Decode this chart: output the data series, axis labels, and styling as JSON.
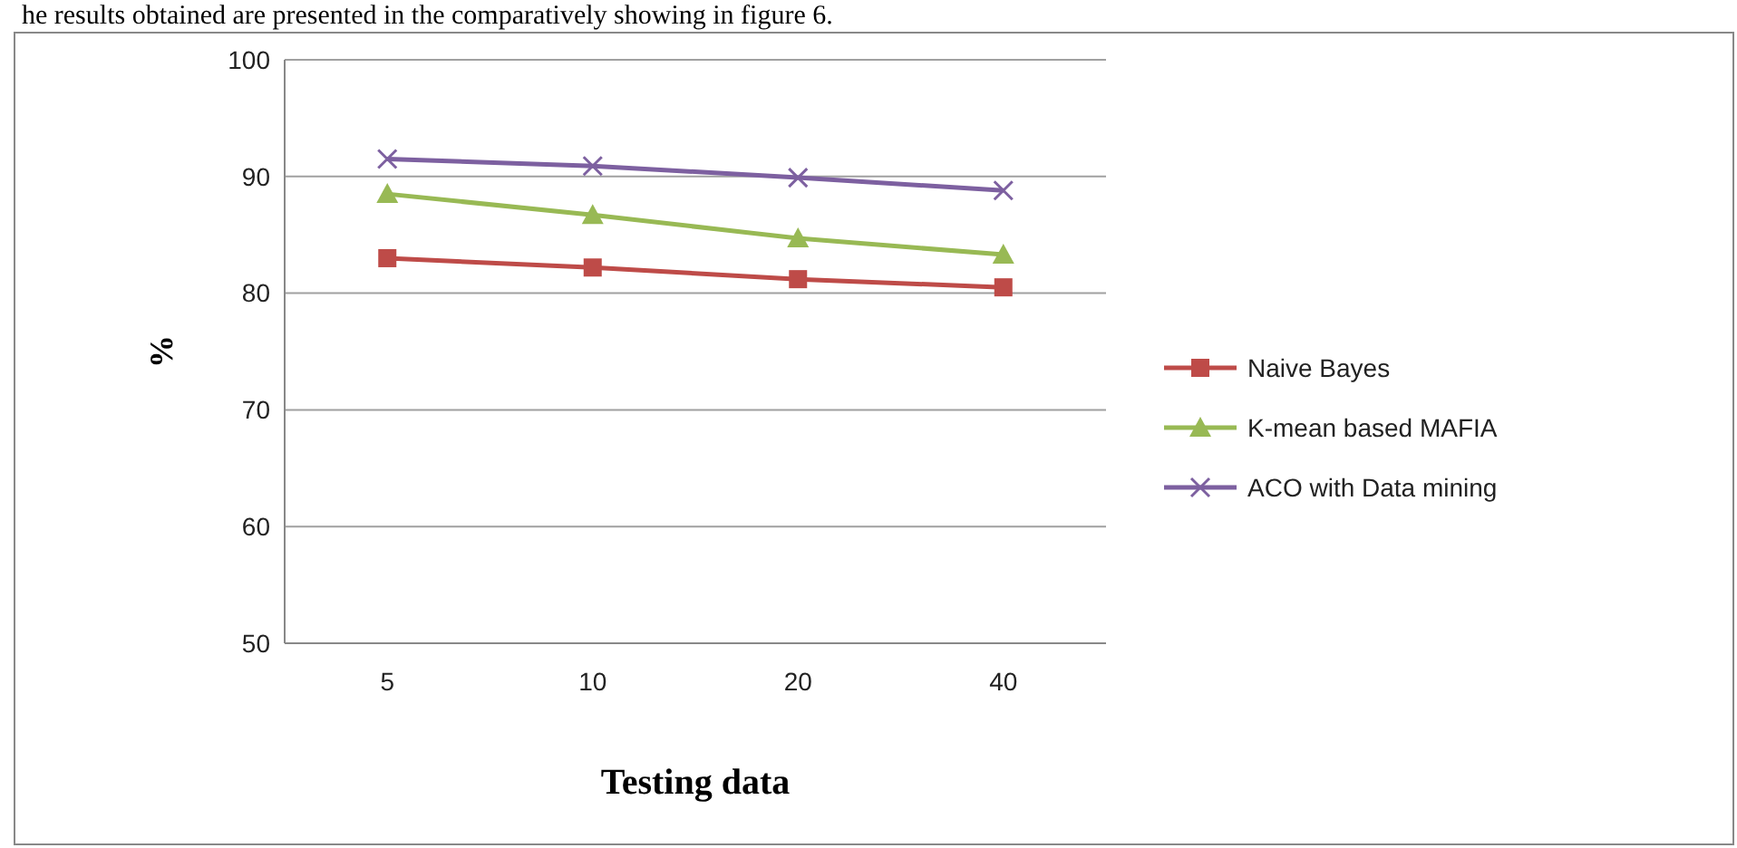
{
  "chart_data": {
    "type": "line",
    "xlabel": "Testing data",
    "ylabel": "%",
    "categories": [
      "5",
      "10",
      "20",
      "40"
    ],
    "series": [
      {
        "name": "Naive Bayes",
        "color": "#be4b48",
        "values": [
          83,
          82.2,
          81.2,
          80.5
        ],
        "marker": "square"
      },
      {
        "name": "K-mean based MAFIA",
        "color": "#98b954",
        "values": [
          88.5,
          86.7,
          84.7,
          83.3
        ],
        "marker": "triangle"
      },
      {
        "name": "ACO with Data mining",
        "color": "#7d60a0",
        "values": [
          91.5,
          90.9,
          89.9,
          88.8
        ],
        "marker": "cross"
      }
    ],
    "ylim": [
      50,
      100
    ],
    "yticks": [
      50,
      60,
      70,
      80,
      90,
      100
    ],
    "grid": "y",
    "legend": "right",
    "annotations": [
      "he results obtained are presented in the comparatively showing in figure 6."
    ]
  }
}
